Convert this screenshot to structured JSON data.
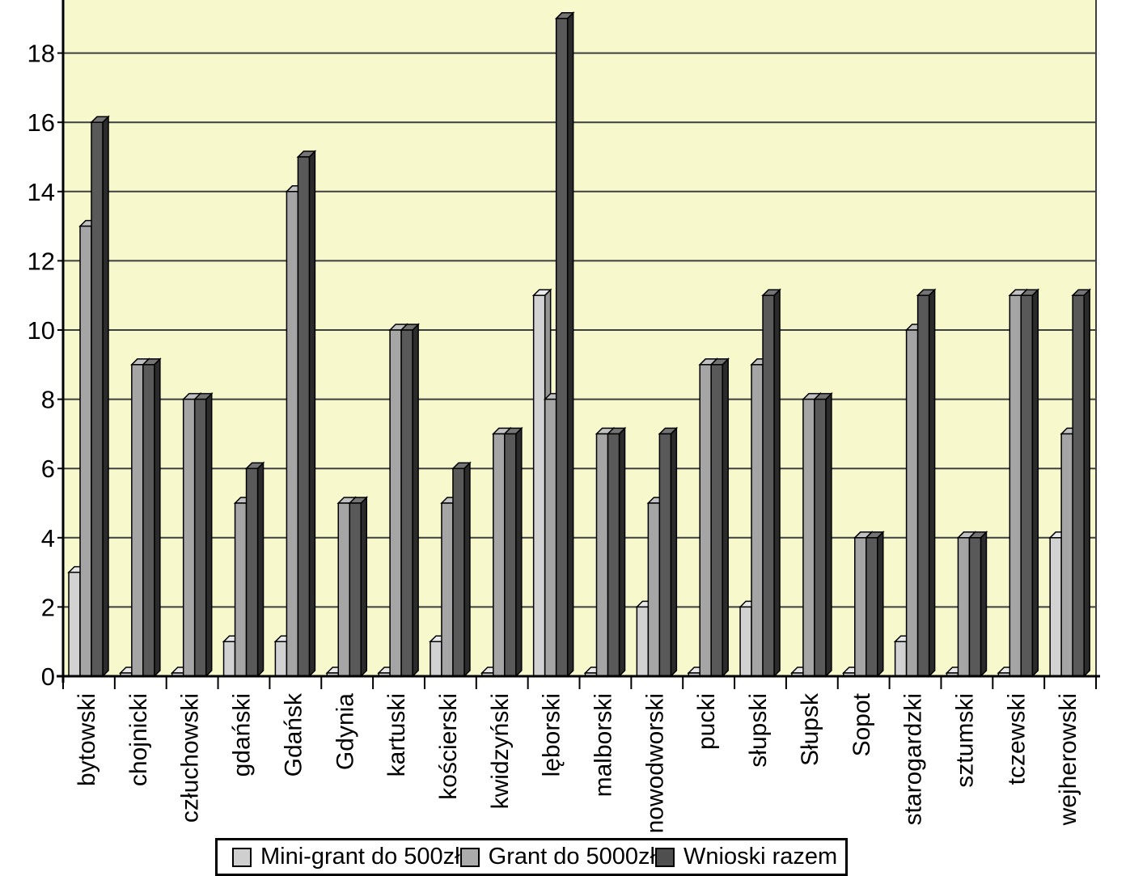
{
  "chart_data": {
    "type": "bar",
    "title": "",
    "xlabel": "",
    "ylabel": "",
    "categories": [
      "bytowski",
      "chojnicki",
      "człuchowski",
      "gdański",
      "Gdańsk",
      "Gdynia",
      "kartuski",
      "kościerski",
      "kwidzyński",
      "lęborski",
      "malborski",
      "nowodworski",
      "pucki",
      "słupski",
      "Słupsk",
      "Sopot",
      "starogardzki",
      "sztumski",
      "tczewski",
      "wejherowski"
    ],
    "series": [
      {
        "name": "Mini-grant do 500zł",
        "values": [
          3,
          0,
          0,
          1,
          1,
          0,
          0,
          1,
          0,
          11,
          0,
          2,
          0,
          2,
          0,
          0,
          1,
          0,
          0,
          4
        ],
        "color_front": "#d2d2d2",
        "color_side": "#969696",
        "color_top": "#e9e9e9",
        "swatch": "#cfcfcf"
      },
      {
        "name": "Grant do 5000zł",
        "values": [
          13,
          9,
          8,
          5,
          14,
          5,
          10,
          5,
          7,
          8,
          7,
          5,
          9,
          9,
          8,
          4,
          10,
          4,
          11,
          7
        ],
        "color_front": "#a5a5a5",
        "color_side": "#6b6b6b",
        "color_top": "#c0c0c0",
        "swatch": "#ababab"
      },
      {
        "name": "Wnioski razem",
        "values": [
          16,
          9,
          8,
          6,
          15,
          5,
          10,
          6,
          7,
          19,
          7,
          7,
          9,
          11,
          8,
          4,
          11,
          4,
          11,
          11
        ],
        "color_front": "#595959",
        "color_side": "#2b2b2b",
        "color_top": "#747474",
        "swatch": "#4f4f4f"
      }
    ],
    "ylim": [
      0,
      19.5
    ],
    "yticks": [
      0,
      2,
      4,
      6,
      8,
      10,
      12,
      14,
      16,
      18
    ],
    "grid": true,
    "legend_position": "bottom",
    "style": "3d-clustered-column",
    "plot_bg": "#f8f8cd",
    "outer_bg": "#ffffff",
    "gridline_color": "#3f3f3f",
    "axis_color": "#000000"
  }
}
